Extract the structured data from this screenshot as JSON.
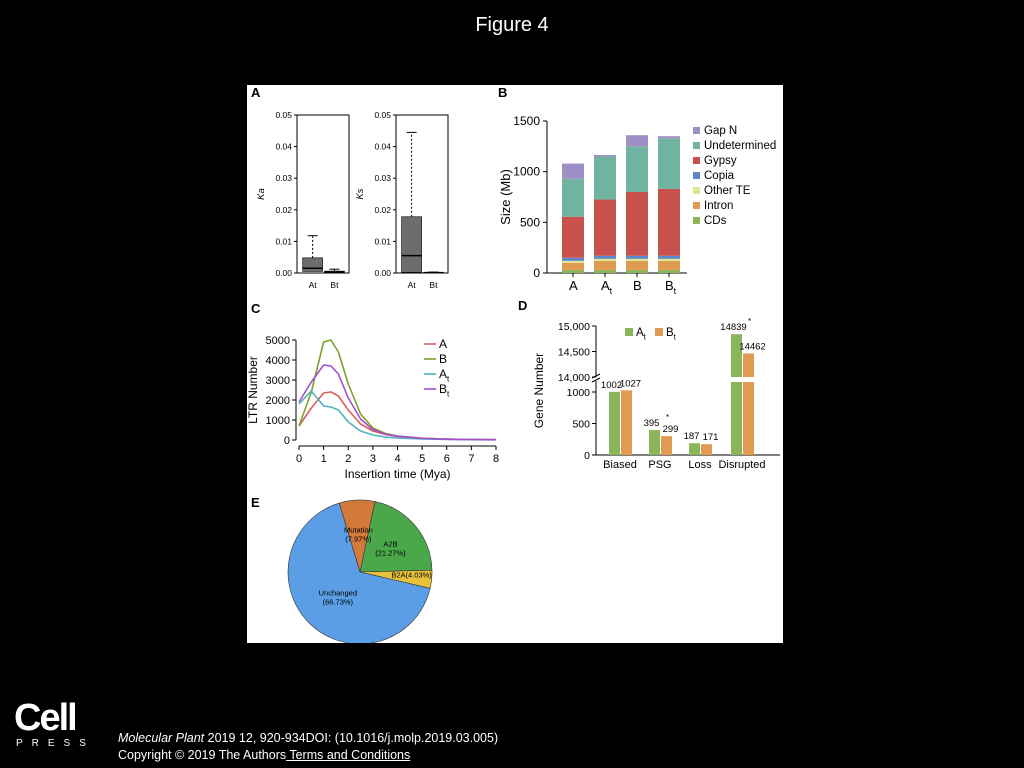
{
  "slide_title": "Figure 4",
  "footer": {
    "citation_italic": "Molecular Plant",
    "citation_rest": " 2019 12, 920-934DOI: (10.1016/j.molp.2019.03.005)",
    "copyright": "Copyright © 2019 The Authors",
    "terms_link": " Terms and Conditions"
  },
  "logo": {
    "word": "Cell",
    "press": "PRESS"
  },
  "colors": {
    "gapN": "#9e8fc6",
    "undetermined": "#6fb3a0",
    "gypsy": "#c8514c",
    "copia": "#5e86c8",
    "otherTE": "#dde98f",
    "intron": "#e19a52",
    "cds": "#8bb55a",
    "A": "#d95f5a",
    "B": "#7aa32b",
    "At": "#4db3bb",
    "Bt": "#a64ed0",
    "box": "#6d6d6d",
    "pie_blue": "#5b9ee6",
    "pie_green": "#4aa84a",
    "pie_yellow": "#e8c23a",
    "pie_orange": "#d27a3a"
  },
  "chart_data": [
    {
      "panel": "A",
      "type": "boxplot",
      "subplots": [
        {
          "ylabel": "Ka",
          "ylim": [
            0,
            0.05
          ],
          "yticks": [
            "0.00",
            "0.01",
            "0.02",
            "0.03",
            "0.04",
            "0.05"
          ],
          "categories": [
            "At",
            "Bt"
          ],
          "boxes": [
            {
              "name": "At",
              "whisker_low": 0.0,
              "q1": 0.0005,
              "median": 0.0015,
              "q3": 0.0048,
              "whisker_high": 0.0118
            },
            {
              "name": "Bt",
              "whisker_low": 0.0,
              "q1": 0.0001,
              "median": 0.0003,
              "q3": 0.0006,
              "whisker_high": 0.0012
            }
          ]
        },
        {
          "ylabel": "Ks",
          "ylim": [
            0,
            0.05
          ],
          "yticks": [
            "0.00",
            "0.01",
            "0.02",
            "0.03",
            "0.04",
            "0.05"
          ],
          "categories": [
            "At",
            "Bt"
          ],
          "boxes": [
            {
              "name": "At",
              "whisker_low": 0.0,
              "q1": 0.0002,
              "median": 0.0055,
              "q3": 0.0178,
              "whisker_high": 0.0445
            },
            {
              "name": "Bt",
              "whisker_low": 0.0,
              "q1": 0.0,
              "median": 0.0001,
              "q3": 0.0002,
              "whisker_high": 0.0003
            }
          ]
        }
      ]
    },
    {
      "panel": "B",
      "type": "bar",
      "stacked": true,
      "ylabel": "Size (Mb)",
      "ylim": [
        0,
        1500
      ],
      "yticks": [
        "0",
        "500",
        "1000",
        "1500"
      ],
      "categories": [
        {
          "base": "A",
          "sub": ""
        },
        {
          "base": "A",
          "sub": "t"
        },
        {
          "base": "B",
          "sub": ""
        },
        {
          "base": "B",
          "sub": "t"
        }
      ],
      "series": [
        {
          "name": "CDs",
          "color_key": "cds",
          "values": [
            30,
            30,
            30,
            30
          ]
        },
        {
          "name": "Intron",
          "color_key": "intron",
          "values": [
            70,
            90,
            90,
            90
          ]
        },
        {
          "name": "Other TE",
          "color_key": "otherTE",
          "values": [
            20,
            20,
            20,
            20
          ]
        },
        {
          "name": "Copia",
          "color_key": "copia",
          "values": [
            30,
            30,
            30,
            30
          ]
        },
        {
          "name": "Gypsy",
          "color_key": "gypsy",
          "values": [
            405,
            555,
            630,
            660
          ]
        },
        {
          "name": "Undetermined",
          "color_key": "undetermined",
          "values": [
            375,
            425,
            450,
            500
          ]
        },
        {
          "name": "Gap N",
          "color_key": "gapN",
          "values": [
            150,
            15,
            110,
            20
          ]
        }
      ],
      "legend_order": [
        "Gap N",
        "Undetermined",
        "Gypsy",
        "Copia",
        "Other TE",
        "Intron",
        "CDs"
      ],
      "legend_position": "right"
    },
    {
      "panel": "C",
      "type": "line",
      "xlabel": "Insertion time (Mya)",
      "ylabel": "LTR Number",
      "xlim": [
        0,
        8
      ],
      "ylim": [
        0,
        5000
      ],
      "xticks": [
        "0",
        "1",
        "2",
        "3",
        "4",
        "5",
        "6",
        "7",
        "8"
      ],
      "yticks": [
        "0",
        "1000",
        "2000",
        "3000",
        "4000",
        "5000"
      ],
      "x": [
        0,
        0.5,
        1.0,
        1.3,
        1.6,
        2.0,
        2.5,
        3.0,
        3.5,
        4.0,
        5.0,
        6.0,
        7.0,
        8.0
      ],
      "series": [
        {
          "name": {
            "base": "A",
            "sub": ""
          },
          "color_key": "A",
          "values": [
            700,
            1600,
            2350,
            2400,
            2200,
            1500,
            800,
            450,
            280,
            180,
            80,
            40,
            20,
            15
          ]
        },
        {
          "name": {
            "base": "B",
            "sub": ""
          },
          "color_key": "B",
          "values": [
            700,
            2400,
            4900,
            5000,
            4400,
            2800,
            1300,
            600,
            330,
            200,
            90,
            45,
            25,
            15
          ]
        },
        {
          "name": {
            "base": "A",
            "sub": "t"
          },
          "color_key": "At",
          "values": [
            1800,
            2450,
            1700,
            1650,
            1500,
            900,
            450,
            250,
            150,
            100,
            50,
            25,
            15,
            10
          ]
        },
        {
          "name": {
            "base": "B",
            "sub": "t"
          },
          "color_key": "Bt",
          "values": [
            1900,
            2900,
            3750,
            3700,
            3300,
            2100,
            1050,
            520,
            300,
            190,
            85,
            40,
            20,
            15
          ]
        }
      ],
      "legend_position": "top-right"
    },
    {
      "panel": "D",
      "type": "bar",
      "ylabel": "Gene Number",
      "broken_axis": true,
      "yticks": [
        "0",
        "500",
        "1000",
        "14,000",
        "14,500",
        "15,000"
      ],
      "categories": [
        "Biased",
        "PSG",
        "Loss",
        "Disrupted"
      ],
      "series": [
        {
          "name": {
            "base": "A",
            "sub": "t"
          },
          "color_key": "cds",
          "values": [
            1002,
            395,
            187,
            14839
          ],
          "labels": [
            "1002",
            "395",
            "187",
            "14839"
          ]
        },
        {
          "name": {
            "base": "B",
            "sub": "t"
          },
          "color_key": "intron",
          "values": [
            1027,
            299,
            171,
            14462
          ],
          "labels": [
            "1027",
            "299",
            "171",
            "14462"
          ]
        }
      ],
      "asterisks": [
        {
          "series": 0,
          "index": 1,
          "text": "*"
        },
        {
          "series": 0,
          "index": 3,
          "text": "*"
        }
      ],
      "legend_position": "top"
    },
    {
      "panel": "E",
      "type": "pie",
      "slices": [
        {
          "label": "A2B",
          "value": 21.27,
          "pct_text": "(21.27%)",
          "color_key": "pie_green"
        },
        {
          "label": "B2A(4.03%)",
          "value": 4.03,
          "pct_text": "",
          "color_key": "pie_yellow"
        },
        {
          "label": "Unchanged",
          "value": 66.73,
          "pct_text": "(66.73%)",
          "color_key": "pie_blue"
        },
        {
          "label": "Mutation",
          "value": 7.97,
          "pct_text": "(7.97%)",
          "color_key": "pie_orange"
        }
      ]
    }
  ],
  "panel_letters": [
    "A",
    "B",
    "C",
    "D",
    "E"
  ]
}
